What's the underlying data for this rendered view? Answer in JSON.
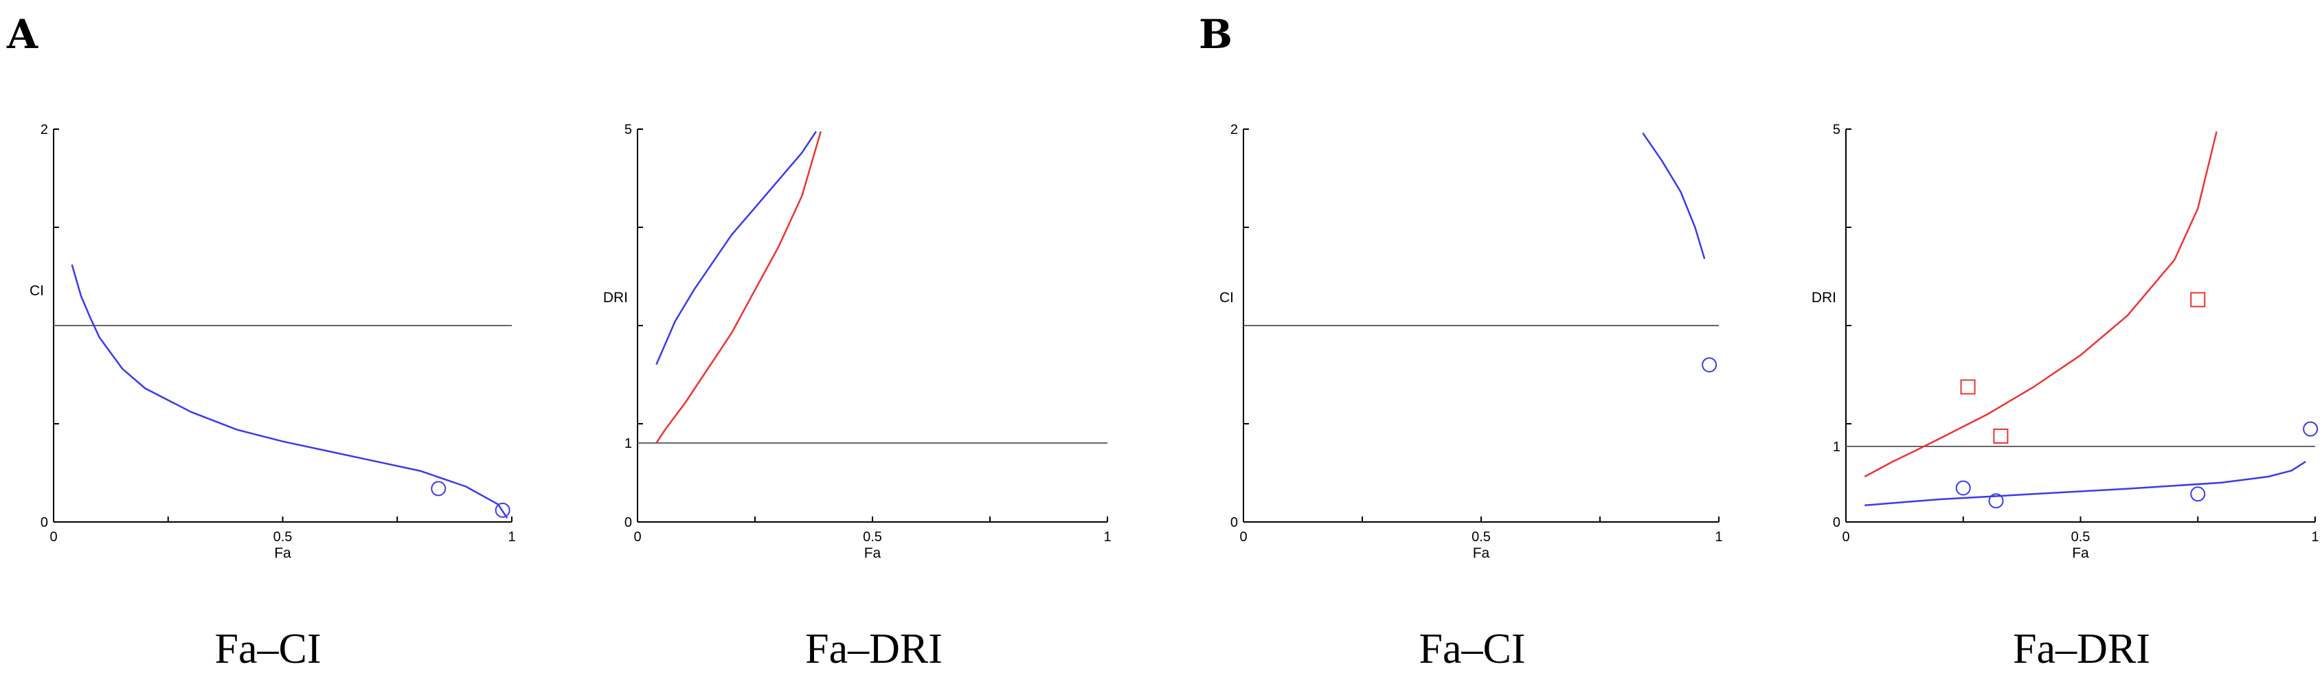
{
  "panel_labels": [
    "A",
    "B"
  ],
  "captions": [
    "Fa–CI",
    "Fa–DRI",
    "Fa–CI",
    "Fa–DRI"
  ],
  "colors": {
    "blue": "#3a3af0",
    "red": "#ee3333",
    "reference": "#666666",
    "axis": "#000000"
  },
  "chart_data": [
    {
      "type": "line",
      "panel": "A",
      "caption": "Fa–CI",
      "xlabel": "Fa",
      "ylabel": "CI",
      "xlim": [
        0,
        1
      ],
      "ylim": [
        0,
        2
      ],
      "xticks": [
        "0",
        "0.5",
        "1"
      ],
      "yticks": [
        "0",
        "2"
      ],
      "reference_line": 1,
      "series": [
        {
          "color": "blue",
          "marker": "none",
          "x": [
            0.04,
            0.06,
            0.08,
            0.1,
            0.15,
            0.2,
            0.3,
            0.4,
            0.5,
            0.6,
            0.7,
            0.8,
            0.9,
            0.97,
            0.99
          ],
          "y": [
            1.31,
            1.15,
            1.04,
            0.94,
            0.78,
            0.68,
            0.56,
            0.47,
            0.41,
            0.36,
            0.31,
            0.26,
            0.18,
            0.09,
            0.02
          ]
        },
        {
          "color": "blue",
          "marker": "circle",
          "x": [
            0.84,
            0.98
          ],
          "y": [
            0.17,
            0.06
          ]
        }
      ]
    },
    {
      "type": "line",
      "panel": "A",
      "caption": "Fa–DRI",
      "xlabel": "Fa",
      "ylabel": "DRI",
      "xlim": [
        0,
        1
      ],
      "ylim": [
        0,
        5
      ],
      "yscale": "nonlinear",
      "xticks": [
        "0",
        "0.5",
        "1"
      ],
      "yticks": [
        "0",
        "1",
        "5"
      ],
      "reference_line": 1,
      "series": [
        {
          "color": "blue",
          "marker": "none",
          "x": [
            0.04,
            0.08,
            0.12,
            0.16,
            0.2,
            0.25,
            0.3,
            0.35,
            0.38
          ],
          "y": [
            2.0,
            2.55,
            2.95,
            3.3,
            3.65,
            4.0,
            4.35,
            4.7,
            4.97
          ]
        },
        {
          "color": "red",
          "marker": "none",
          "x": [
            0.04,
            0.06,
            0.1,
            0.15,
            0.2,
            0.25,
            0.3,
            0.35,
            0.39
          ],
          "y": [
            1.0,
            1.18,
            1.5,
            1.95,
            2.4,
            2.95,
            3.5,
            4.15,
            4.97
          ]
        }
      ]
    },
    {
      "type": "line",
      "panel": "B",
      "caption": "Fa–CI",
      "xlabel": "Fa",
      "ylabel": "CI",
      "xlim": [
        0,
        1
      ],
      "ylim": [
        0,
        2
      ],
      "xticks": [
        "0",
        "0.5",
        "1"
      ],
      "yticks": [
        "0",
        "2"
      ],
      "reference_line": 1,
      "series": [
        {
          "color": "blue",
          "marker": "none",
          "x": [
            0.84,
            0.88,
            0.92,
            0.95,
            0.97
          ],
          "y": [
            1.98,
            1.84,
            1.68,
            1.5,
            1.34
          ]
        },
        {
          "color": "blue",
          "marker": "circle",
          "x": [
            0.98
          ],
          "y": [
            0.8
          ]
        }
      ]
    },
    {
      "type": "line",
      "panel": "B",
      "caption": "Fa–DRI",
      "xlabel": "Fa",
      "ylabel": "DRI",
      "xlim": [
        0,
        1
      ],
      "ylim": [
        0,
        5
      ],
      "yscale": "nonlinear",
      "xticks": [
        "0",
        "0.5",
        "1"
      ],
      "yticks": [
        "0",
        "1",
        "5"
      ],
      "reference_line": 1,
      "series": [
        {
          "color": "red",
          "marker": "none",
          "x": [
            0.04,
            0.1,
            0.15,
            0.2,
            0.3,
            0.4,
            0.5,
            0.6,
            0.7,
            0.75,
            0.79
          ],
          "y": [
            0.6,
            0.8,
            0.95,
            1.1,
            1.4,
            1.75,
            2.15,
            2.65,
            3.35,
            4.0,
            4.97
          ]
        },
        {
          "color": "blue",
          "marker": "none",
          "x": [
            0.04,
            0.2,
            0.4,
            0.6,
            0.8,
            0.9,
            0.95,
            0.98
          ],
          "y": [
            0.22,
            0.3,
            0.37,
            0.44,
            0.52,
            0.6,
            0.68,
            0.8
          ]
        },
        {
          "color": "red",
          "marker": "square",
          "x": [
            0.26,
            0.33,
            0.75
          ],
          "y": [
            1.75,
            1.13,
            2.85
          ]
        },
        {
          "color": "blue",
          "marker": "circle",
          "x": [
            0.25,
            0.32,
            0.75,
            0.99
          ],
          "y": [
            0.45,
            0.28,
            0.37,
            1.22
          ]
        }
      ]
    }
  ]
}
